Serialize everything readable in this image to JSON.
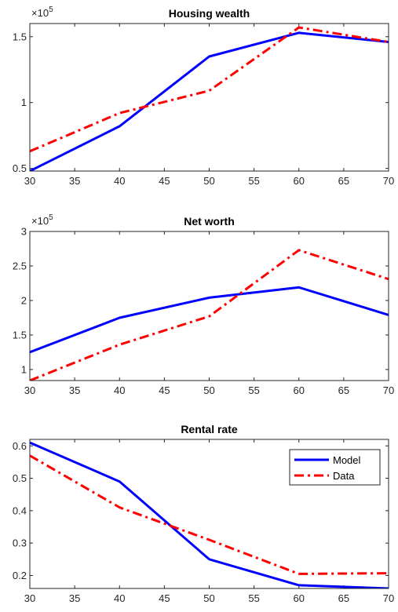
{
  "chart_data": [
    {
      "type": "line",
      "title": "Housing wealth",
      "exponent_label": "×10^5",
      "x": [
        30,
        40,
        50,
        60,
        70
      ],
      "xlim": [
        30,
        70
      ],
      "xticks": [
        30,
        35,
        40,
        45,
        50,
        55,
        60,
        65,
        70
      ],
      "ylim": [
        0.48,
        1.6
      ],
      "yticks": [
        0.5,
        1,
        1.5
      ],
      "ytick_labels": [
        "0.5",
        "1",
        "1.5"
      ],
      "series": [
        {
          "name": "Model",
          "color": "#0000FF",
          "style": "solid",
          "values": [
            0.48,
            0.82,
            1.35,
            1.53,
            1.46
          ]
        },
        {
          "name": "Data",
          "color": "#FF0000",
          "style": "dashdot",
          "values": [
            0.63,
            0.92,
            1.09,
            1.57,
            1.46
          ]
        }
      ],
      "legend": null
    },
    {
      "type": "line",
      "title": "Net worth",
      "exponent_label": "×10^5",
      "x": [
        30,
        40,
        50,
        60,
        70
      ],
      "xlim": [
        30,
        70
      ],
      "xticks": [
        30,
        35,
        40,
        45,
        50,
        55,
        60,
        65,
        70
      ],
      "ylim": [
        0.84,
        3.0
      ],
      "yticks": [
        1,
        1.5,
        2,
        2.5,
        3
      ],
      "ytick_labels": [
        "1",
        "1.5",
        "2",
        "2.5",
        "3"
      ],
      "series": [
        {
          "name": "Model",
          "color": "#0000FF",
          "style": "solid",
          "values": [
            1.25,
            1.75,
            2.04,
            2.19,
            1.79
          ]
        },
        {
          "name": "Data",
          "color": "#FF0000",
          "style": "dashdot",
          "values": [
            0.84,
            1.36,
            1.77,
            2.73,
            2.31
          ]
        }
      ],
      "legend": null
    },
    {
      "type": "line",
      "title": "Rental rate",
      "exponent_label": "",
      "x": [
        30,
        40,
        50,
        60,
        70
      ],
      "xlim": [
        30,
        70
      ],
      "xticks": [
        30,
        35,
        40,
        45,
        50,
        55,
        60,
        65,
        70
      ],
      "ylim": [
        0.16,
        0.62
      ],
      "yticks": [
        0.2,
        0.3,
        0.4,
        0.5,
        0.6
      ],
      "ytick_labels": [
        "0.2",
        "0.3",
        "0.4",
        "0.5",
        "0.6"
      ],
      "series": [
        {
          "name": "Model",
          "color": "#0000FF",
          "style": "solid",
          "values": [
            0.61,
            0.49,
            0.25,
            0.17,
            0.16
          ]
        },
        {
          "name": "Data",
          "color": "#FF0000",
          "style": "dashdot",
          "values": [
            0.57,
            0.41,
            0.31,
            0.205,
            0.207
          ]
        }
      ],
      "legend": {
        "position": "top-right",
        "entries": [
          "Model",
          "Data"
        ]
      }
    }
  ]
}
